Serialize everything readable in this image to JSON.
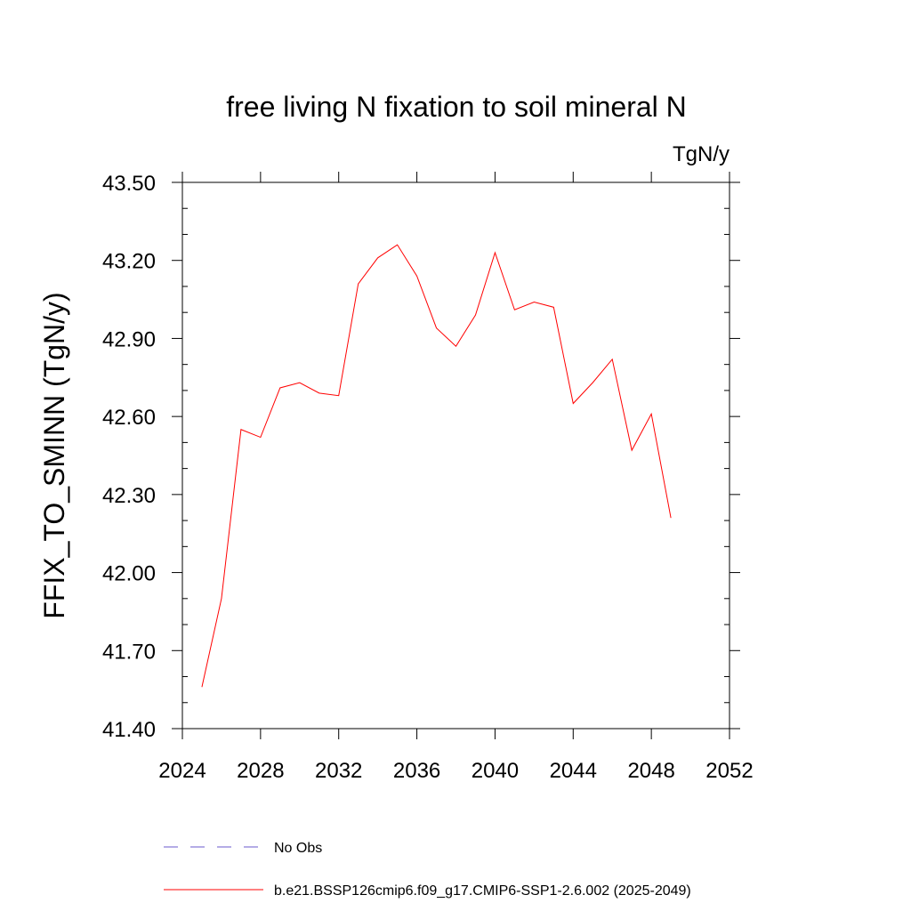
{
  "chart_data": {
    "type": "line",
    "title": "free living N fixation to soil mineral N",
    "units": "TgN/y",
    "ylabel": "FFIX_TO_SMINN  (TgN/y)",
    "xlabel": "",
    "xlim": [
      2024,
      2052
    ],
    "ylim": [
      41.4,
      43.5
    ],
    "x_ticks": [
      2024,
      2028,
      2032,
      2036,
      2040,
      2044,
      2048,
      2052
    ],
    "x_tick_labels": [
      "2024",
      "2028",
      "2032",
      "2036",
      "2040",
      "2044",
      "2048",
      "2052"
    ],
    "y_ticks": [
      41.4,
      41.7,
      42.0,
      42.3,
      42.6,
      42.9,
      43.2,
      43.5
    ],
    "y_tick_labels": [
      "41.40",
      "41.70",
      "42.00",
      "42.30",
      "42.60",
      "42.90",
      "43.20",
      "43.50"
    ],
    "grid": false,
    "legend_position": "bottom",
    "series": [
      {
        "name": "b.e21.BSSP126cmip6.f09_g17.CMIP6-SSP1-2.6.002 (2025-2049)",
        "color": "#ff0000",
        "style": "solid",
        "x": [
          2025,
          2026,
          2027,
          2028,
          2029,
          2030,
          2031,
          2032,
          2033,
          2034,
          2035,
          2036,
          2037,
          2038,
          2039,
          2040,
          2041,
          2042,
          2043,
          2044,
          2045,
          2046,
          2047,
          2048,
          2049
        ],
        "values": [
          41.56,
          41.9,
          42.55,
          42.52,
          42.71,
          42.73,
          42.69,
          42.68,
          43.11,
          43.21,
          43.26,
          43.14,
          42.94,
          42.87,
          42.99,
          43.23,
          43.01,
          43.04,
          43.02,
          42.65,
          42.73,
          42.82,
          42.47,
          42.61,
          42.21
        ]
      }
    ],
    "legend": [
      {
        "label": "No Obs",
        "color": "#6a5acd",
        "style": "dashed"
      },
      {
        "label": "b.e21.BSSP126cmip6.f09_g17.CMIP6-SSP1-2.6.002 (2025-2049)",
        "color": "#ff0000",
        "style": "solid"
      }
    ]
  }
}
